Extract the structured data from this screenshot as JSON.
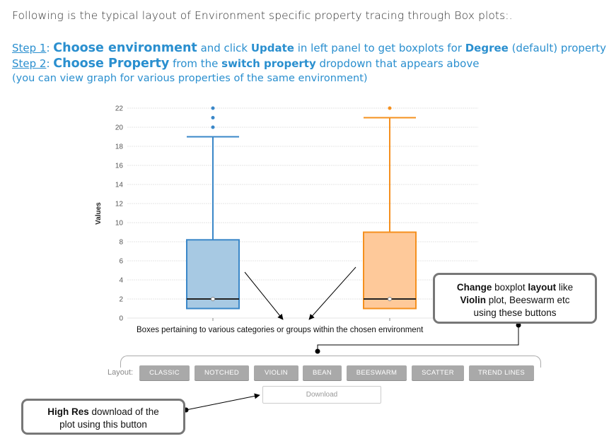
{
  "intro": "Following is the typical layout of Environment specific property tracing through Box plots:.",
  "step1": {
    "label": "Step 1",
    "colon": ": ",
    "head": "Choose environment",
    "t1": " and click ",
    "update": "Update",
    "t2": " in left panel to get boxplots for ",
    "degree": "Degree",
    "t3": " (default) property"
  },
  "step2": {
    "label": "Step 2",
    "colon": ": ",
    "head": "Choose Property",
    "t1": " from the ",
    "switch": "switch property",
    "t2": " dropdown that appears above"
  },
  "step3": "(you can view graph for various properties of the same environment)",
  "chart_data": {
    "type": "box",
    "ylabel": "Values",
    "ylim": [
      0,
      22
    ],
    "yticks": [
      0,
      2,
      4,
      6,
      8,
      10,
      12,
      14,
      16,
      18,
      20,
      22
    ],
    "grid": true,
    "series": [
      {
        "color": "#3a87c8",
        "fill": "#a7c9e3",
        "min": 1,
        "q1": 1,
        "median": 2,
        "mean": 2,
        "q3": 8.2,
        "max": 19,
        "outliers": [
          20,
          21,
          22
        ]
      },
      {
        "color": "#f5901e",
        "fill": "#fec99a",
        "min": 1,
        "q1": 1,
        "median": 2,
        "mean": 2,
        "q3": 9,
        "max": 21,
        "outliers": [
          22
        ]
      }
    ]
  },
  "caption": "Boxes pertaining to various categories or groups within the chosen environment",
  "layout_label": "Layout:",
  "buttons": [
    "CLASSIC",
    "NOTCHED",
    "VIOLIN",
    "BEAN",
    "BEESWARM",
    "SCATTER",
    "TREND LINES"
  ],
  "download_label": "Download",
  "callout_layout": {
    "change": "Change",
    "t1": " boxplot ",
    "layout": "layout",
    "t2": " like",
    "violin": "Violin",
    "t3": " plot, Beeswarm etc",
    "t4": "using these buttons"
  },
  "callout_download": {
    "highres": "High Res",
    "t1": " download of the",
    "t2": "plot using this button"
  },
  "colors": {
    "accent": "#2a8fcf",
    "button": "#a9a9a9",
    "callout_border": "#777777"
  }
}
